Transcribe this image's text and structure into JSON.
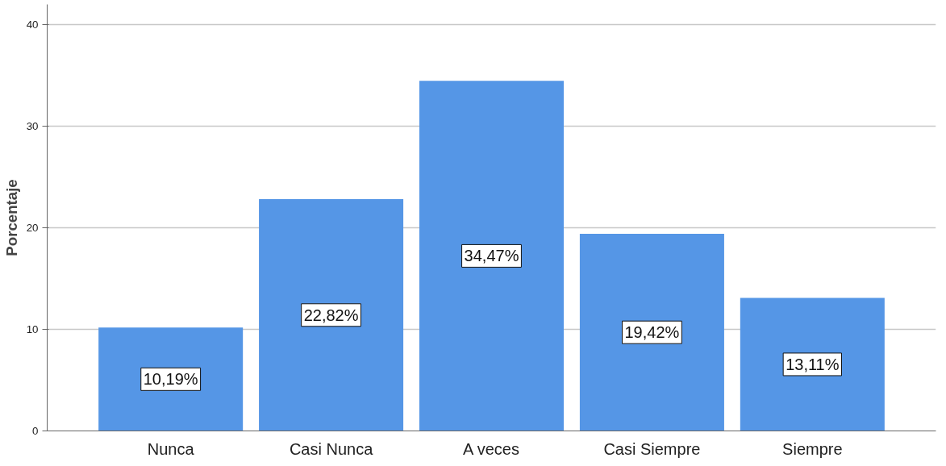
{
  "chart_data": {
    "type": "bar",
    "ylabel": "Porcentaje",
    "categories": [
      "Nunca",
      "Casi Nunca",
      "A veces",
      "Casi Siempre",
      "Siempre"
    ],
    "values": [
      10.19,
      22.82,
      34.47,
      19.42,
      13.11
    ],
    "value_labels": [
      "10,19%",
      "22,82%",
      "34,47%",
      "19,42%",
      "13,11%"
    ],
    "color": "#5596e6",
    "ylim": [
      0,
      42
    ],
    "yticks": [
      0,
      10,
      20,
      30,
      40
    ],
    "grid": "y"
  }
}
